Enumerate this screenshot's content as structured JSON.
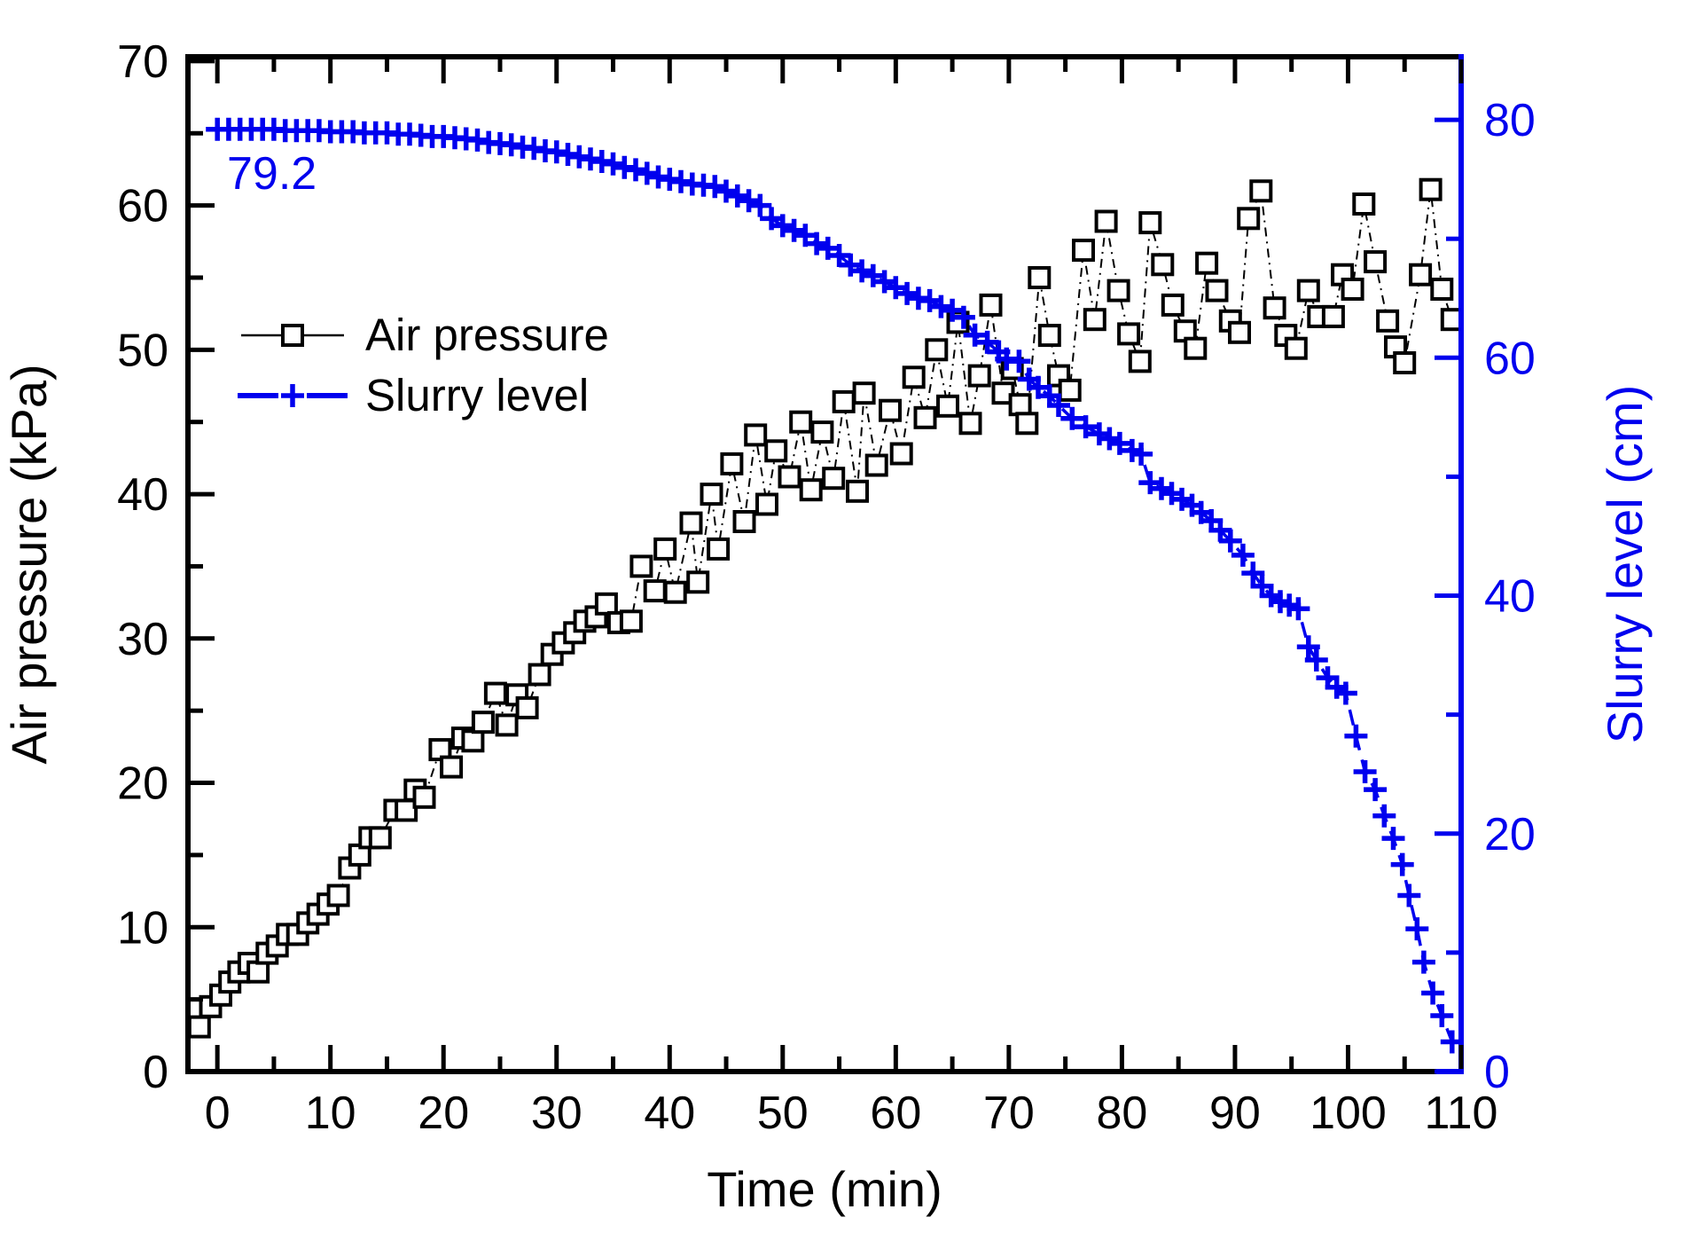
{
  "figure": {
    "background": "#ffffff",
    "annotation": {
      "text": "79.2",
      "color": "#0000ee",
      "meaning": "initial slurry level value"
    },
    "axes": {
      "x": {
        "label": "Time (min)",
        "min": -2.6,
        "max": 110,
        "major_ticks": [
          0,
          10,
          20,
          30,
          40,
          50,
          60,
          70,
          80,
          90,
          100,
          110
        ],
        "minor_ticks": [
          5,
          15,
          25,
          35,
          45,
          55,
          65,
          75,
          85,
          95,
          105
        ],
        "color": "#000000"
      },
      "y_left": {
        "label": "Air pressure (kPa)",
        "min": 0,
        "max": 70.3,
        "major_ticks": [
          0,
          10,
          20,
          30,
          40,
          50,
          60,
          70
        ],
        "minor_ticks": [
          5,
          15,
          25,
          35,
          45,
          55,
          65
        ],
        "color": "#000000"
      },
      "y_right": {
        "label": "Slurry level (cm)",
        "min": 0,
        "max": 85.3,
        "major_ticks": [
          0,
          20,
          40,
          60,
          80
        ],
        "minor_ticks": [
          10,
          30,
          50,
          70
        ],
        "color": "#0000ee"
      }
    },
    "legend": {
      "position": "upper-left-inside",
      "items": [
        {
          "label": "Air pressure",
          "marker": "open-square",
          "color": "#000000"
        },
        {
          "label": "Slurry level",
          "marker": "plus",
          "color": "#0000ee"
        }
      ]
    }
  },
  "chart_data": {
    "type": "line",
    "title": "",
    "xlabel": "Time (min)",
    "ylabel_left": "Air pressure (kPa)",
    "ylabel_right": "Slurry level (cm)",
    "x_range": [
      -2.6,
      110
    ],
    "y_left_range": [
      0,
      70.3
    ],
    "y_right_range": [
      0,
      85.3
    ],
    "grid": false,
    "annotations": [
      {
        "text": "79.2",
        "x": 1,
        "y": 75.5,
        "axis": "right",
        "color": "#0000ee"
      }
    ],
    "series": [
      {
        "name": "Air pressure",
        "axis": "left",
        "marker": "open-square",
        "color": "#000000",
        "line_style": "dash-dot",
        "points": [
          [
            -1.6,
            3.1
          ],
          [
            -0.6,
            4.5
          ],
          [
            0.3,
            5.3
          ],
          [
            1.1,
            6.2
          ],
          [
            1.9,
            6.9
          ],
          [
            2.8,
            7.5
          ],
          [
            3.6,
            6.9
          ],
          [
            4.4,
            8.2
          ],
          [
            5.3,
            8.7
          ],
          [
            6.2,
            9.5
          ],
          [
            7.1,
            9.5
          ],
          [
            8.0,
            10.3
          ],
          [
            8.9,
            10.9
          ],
          [
            9.8,
            11.6
          ],
          [
            10.7,
            12.2
          ],
          [
            11.7,
            14.1
          ],
          [
            12.6,
            15.0
          ],
          [
            13.5,
            16.2
          ],
          [
            14.4,
            16.2
          ],
          [
            15.7,
            18.1
          ],
          [
            16.7,
            18.1
          ],
          [
            17.5,
            19.5
          ],
          [
            18.3,
            19.0
          ],
          [
            19.7,
            22.3
          ],
          [
            20.7,
            21.1
          ],
          [
            21.7,
            23.1
          ],
          [
            22.6,
            22.9
          ],
          [
            23.5,
            24.2
          ],
          [
            24.6,
            26.2
          ],
          [
            25.6,
            24.0
          ],
          [
            26.5,
            26.1
          ],
          [
            27.4,
            25.2
          ],
          [
            28.5,
            27.5
          ],
          [
            29.6,
            28.9
          ],
          [
            30.6,
            29.7
          ],
          [
            31.6,
            30.4
          ],
          [
            32.5,
            31.2
          ],
          [
            33.5,
            31.5
          ],
          [
            34.4,
            32.4
          ],
          [
            35.5,
            31.1
          ],
          [
            36.6,
            31.2
          ],
          [
            37.5,
            35.0
          ],
          [
            38.7,
            33.3
          ],
          [
            39.6,
            36.2
          ],
          [
            40.5,
            33.2
          ],
          [
            41.9,
            38.0
          ],
          [
            42.5,
            33.9
          ],
          [
            43.7,
            40.0
          ],
          [
            44.3,
            36.2
          ],
          [
            45.5,
            42.1
          ],
          [
            46.6,
            38.1
          ],
          [
            47.6,
            44.1
          ],
          [
            48.6,
            39.3
          ],
          [
            49.4,
            43.0
          ],
          [
            50.6,
            41.2
          ],
          [
            51.6,
            45.0
          ],
          [
            52.5,
            40.3
          ],
          [
            53.5,
            44.3
          ],
          [
            54.5,
            41.1
          ],
          [
            55.4,
            46.4
          ],
          [
            56.6,
            40.2
          ],
          [
            57.2,
            47.0
          ],
          [
            58.3,
            42.0
          ],
          [
            59.5,
            45.8
          ],
          [
            60.5,
            42.8
          ],
          [
            61.6,
            48.1
          ],
          [
            62.6,
            45.3
          ],
          [
            63.6,
            50.0
          ],
          [
            64.6,
            46.1
          ],
          [
            65.5,
            51.9
          ],
          [
            66.6,
            44.9
          ],
          [
            67.4,
            48.2
          ],
          [
            68.4,
            53.1
          ],
          [
            69.5,
            47.0
          ],
          [
            70.3,
            48.7
          ],
          [
            71.0,
            46.2
          ],
          [
            71.6,
            44.9
          ],
          [
            72.7,
            55.0
          ],
          [
            73.6,
            51.0
          ],
          [
            74.4,
            48.2
          ],
          [
            75.4,
            47.2
          ],
          [
            76.6,
            56.9
          ],
          [
            77.6,
            52.1
          ],
          [
            78.6,
            58.9
          ],
          [
            79.7,
            54.1
          ],
          [
            80.6,
            51.1
          ],
          [
            81.6,
            49.2
          ],
          [
            82.5,
            58.8
          ],
          [
            83.6,
            55.9
          ],
          [
            84.5,
            53.1
          ],
          [
            85.6,
            51.3
          ],
          [
            86.5,
            50.1
          ],
          [
            87.5,
            56.0
          ],
          [
            88.4,
            54.1
          ],
          [
            89.6,
            52.0
          ],
          [
            90.4,
            51.2
          ],
          [
            91.2,
            59.1
          ],
          [
            92.3,
            61.0
          ],
          [
            93.5,
            52.9
          ],
          [
            94.5,
            51.0
          ],
          [
            95.4,
            50.1
          ],
          [
            96.5,
            54.1
          ],
          [
            97.4,
            52.3
          ],
          [
            98.7,
            52.3
          ],
          [
            99.5,
            55.2
          ],
          [
            100.4,
            54.2
          ],
          [
            101.4,
            60.1
          ],
          [
            102.4,
            56.1
          ],
          [
            103.5,
            52.0
          ],
          [
            104.2,
            50.2
          ],
          [
            105.0,
            49.1
          ],
          [
            106.4,
            55.2
          ],
          [
            107.3,
            61.1
          ],
          [
            108.3,
            54.2
          ],
          [
            109.2,
            52.1
          ]
        ]
      },
      {
        "name": "Slurry level",
        "axis": "right",
        "marker": "plus",
        "color": "#0000ee",
        "line_style": "dash",
        "points": [
          [
            0,
            79.2
          ],
          [
            1,
            79.2
          ],
          [
            2,
            79.2
          ],
          [
            3,
            79.2
          ],
          [
            4,
            79.2
          ],
          [
            5,
            79.2
          ],
          [
            6,
            79.1
          ],
          [
            7,
            79.1
          ],
          [
            8,
            79.1
          ],
          [
            9,
            79.1
          ],
          [
            10,
            79.0
          ],
          [
            11,
            79.0
          ],
          [
            12,
            79.0
          ],
          [
            13,
            78.9
          ],
          [
            14,
            78.9
          ],
          [
            15,
            78.9
          ],
          [
            16,
            78.8
          ],
          [
            17,
            78.8
          ],
          [
            18,
            78.7
          ],
          [
            19,
            78.6
          ],
          [
            20,
            78.6
          ],
          [
            21,
            78.5
          ],
          [
            22,
            78.4
          ],
          [
            23,
            78.3
          ],
          [
            24,
            78.1
          ],
          [
            25,
            78.0
          ],
          [
            26,
            77.9
          ],
          [
            27,
            77.7
          ],
          [
            28,
            77.6
          ],
          [
            29,
            77.4
          ],
          [
            30,
            77.3
          ],
          [
            31,
            77.1
          ],
          [
            32,
            76.9
          ],
          [
            33,
            76.7
          ],
          [
            34,
            76.5
          ],
          [
            35,
            76.3
          ],
          [
            36,
            76.0
          ],
          [
            37,
            75.8
          ],
          [
            38,
            75.5
          ],
          [
            39,
            75.2
          ],
          [
            40,
            75.0
          ],
          [
            41,
            74.8
          ],
          [
            42,
            74.6
          ],
          [
            43,
            74.5
          ],
          [
            44,
            74.4
          ],
          [
            45,
            74.0
          ],
          [
            46,
            73.6
          ],
          [
            47,
            73.2
          ],
          [
            48,
            72.8
          ],
          [
            49,
            71.7
          ],
          [
            50,
            71.1
          ],
          [
            51,
            70.7
          ],
          [
            52,
            70.3
          ],
          [
            53,
            69.6
          ],
          [
            54,
            69.2
          ],
          [
            55,
            68.6
          ],
          [
            56,
            67.8
          ],
          [
            57,
            67.3
          ],
          [
            58,
            66.9
          ],
          [
            59,
            66.4
          ],
          [
            60,
            65.9
          ],
          [
            61,
            65.4
          ],
          [
            62,
            65.0
          ],
          [
            63,
            64.8
          ],
          [
            64,
            64.3
          ],
          [
            65,
            64.0
          ],
          [
            66,
            63.4
          ],
          [
            67,
            61.9
          ],
          [
            68.1,
            61.3
          ],
          [
            69.1,
            60.5
          ],
          [
            69.8,
            59.9
          ],
          [
            70.9,
            59.7
          ],
          [
            71.8,
            58.2
          ],
          [
            72.6,
            57.5
          ],
          [
            73.6,
            56.8
          ],
          [
            74.4,
            56.0
          ],
          [
            75.6,
            54.9
          ],
          [
            76.8,
            54.2
          ],
          [
            78.0,
            53.6
          ],
          [
            78.9,
            53.2
          ],
          [
            79.8,
            52.8
          ],
          [
            80.9,
            52.2
          ],
          [
            81.7,
            51.9
          ],
          [
            82.5,
            49.5
          ],
          [
            83.5,
            49.0
          ],
          [
            84.4,
            48.6
          ],
          [
            85.3,
            48.1
          ],
          [
            86.2,
            47.6
          ],
          [
            87.0,
            47.0
          ],
          [
            87.9,
            46.3
          ],
          [
            88.7,
            45.5
          ],
          [
            89.6,
            44.6
          ],
          [
            90.7,
            43.4
          ],
          [
            91.6,
            41.9
          ],
          [
            92.4,
            40.8
          ],
          [
            93.2,
            40.0
          ],
          [
            94.0,
            39.5
          ],
          [
            94.8,
            39.2
          ],
          [
            95.6,
            38.9
          ],
          [
            96.5,
            35.7
          ],
          [
            97.2,
            34.6
          ],
          [
            98.2,
            33.1
          ],
          [
            99.0,
            32.3
          ],
          [
            99.8,
            31.8
          ],
          [
            100.7,
            28.2
          ],
          [
            101.5,
            25.2
          ],
          [
            102.4,
            23.7
          ],
          [
            103.2,
            21.5
          ],
          [
            104.0,
            19.6
          ],
          [
            104.8,
            17.4
          ],
          [
            105.4,
            14.8
          ],
          [
            106.1,
            12.0
          ],
          [
            106.7,
            9.2
          ],
          [
            107.5,
            6.6
          ],
          [
            108.3,
            4.7
          ],
          [
            109.2,
            2.5
          ]
        ]
      }
    ]
  }
}
